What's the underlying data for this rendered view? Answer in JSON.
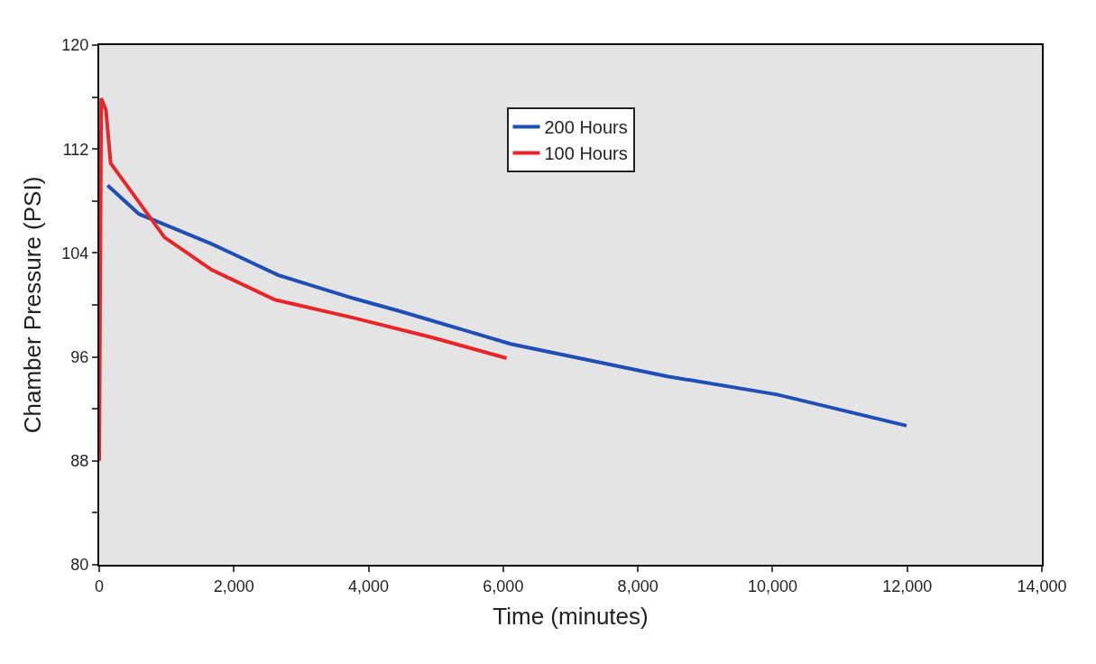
{
  "chart_data": {
    "type": "line",
    "xlabel": "Time (minutes)",
    "ylabel": "Chamber Pressure (PSI)",
    "xlim": [
      0,
      14000
    ],
    "xticks": [
      0,
      {
        "value": 2000,
        "label": "2,000"
      },
      {
        "value": 4000,
        "label": "4,000"
      },
      {
        "value": 6000,
        "label": "6,000"
      },
      {
        "value": 8000,
        "label": "8,000"
      },
      {
        "value": 10000,
        "label": "10,000"
      },
      {
        "value": 12000,
        "label": "12,000"
      },
      {
        "value": 14000,
        "label": "14,000"
      }
    ],
    "ylim": [
      80,
      120
    ],
    "yticks": [
      80,
      {
        "value": 84,
        "label": null
      },
      88,
      {
        "value": 92,
        "label": null
      },
      96,
      {
        "value": 100,
        "label": null
      },
      104,
      {
        "value": 108,
        "label": null
      },
      112,
      {
        "value": 116,
        "label": null
      },
      120
    ],
    "grid": false,
    "legend": "top",
    "marker": "none",
    "line_style": "solid",
    "series": [
      {
        "name": "200 Hours",
        "color": "#1f4eb4",
        "x": [
          125,
          590,
          1670,
          2655,
          3780,
          4480,
          6110,
          8440,
          10070,
          11990
        ],
        "values": [
          109.2,
          107.0,
          104.7,
          102.3,
          100.5,
          99.5,
          97.0,
          94.5,
          93.1,
          90.7
        ]
      },
      {
        "name": "100 Hours",
        "color": "#e8262a",
        "x": [
          0,
          30,
          100,
          170,
          550,
          970,
          1670,
          2610,
          3780,
          4940,
          6050
        ],
        "values": [
          88,
          115.9,
          115.0,
          110.9,
          108.2,
          105.2,
          102.7,
          100.4,
          99.0,
          97.5,
          95.9
        ]
      }
    ]
  }
}
